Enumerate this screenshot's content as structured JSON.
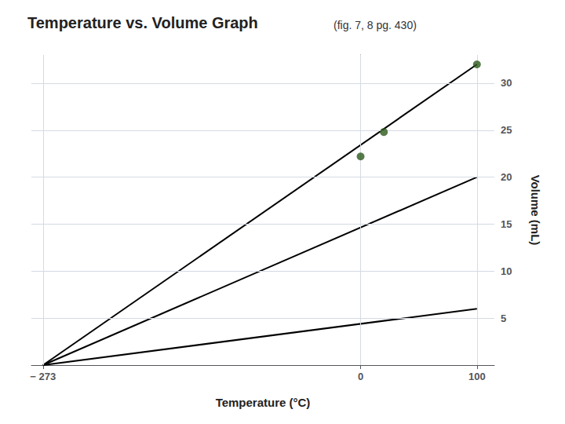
{
  "chart_data": {
    "type": "line",
    "title": "Temperature vs. Volume Graph",
    "subtitle": "(fig. 7, 8 pg. 430)",
    "xlabel": "Temperature (°C)",
    "ylabel": "Volume (mL)",
    "xlim": [
      -283,
      115
    ],
    "xticks": [
      {
        "value": -273,
        "label": "− 273"
      },
      0,
      100
    ],
    "ylim": [
      0,
      33
    ],
    "yticks": [
      5,
      10,
      15,
      20,
      25,
      30
    ],
    "grid": true,
    "series": [
      {
        "type": "line",
        "x": [
          -273,
          100
        ],
        "values": [
          0,
          32.0
        ],
        "color": "black",
        "marker": "none",
        "line_style": "solid"
      },
      {
        "type": "line",
        "x": [
          -273,
          100
        ],
        "values": [
          0,
          20.0
        ],
        "color": "black",
        "marker": "none",
        "line_style": "solid"
      },
      {
        "type": "line",
        "x": [
          -273,
          100
        ],
        "values": [
          0,
          6.0
        ],
        "color": "black",
        "marker": "none",
        "line_style": "solid"
      },
      {
        "type": "scatter",
        "x": [
          0,
          20,
          100
        ],
        "values": [
          22.2,
          24.8,
          32.0
        ],
        "color": "#2d5a1b",
        "marker": "circle"
      }
    ]
  }
}
